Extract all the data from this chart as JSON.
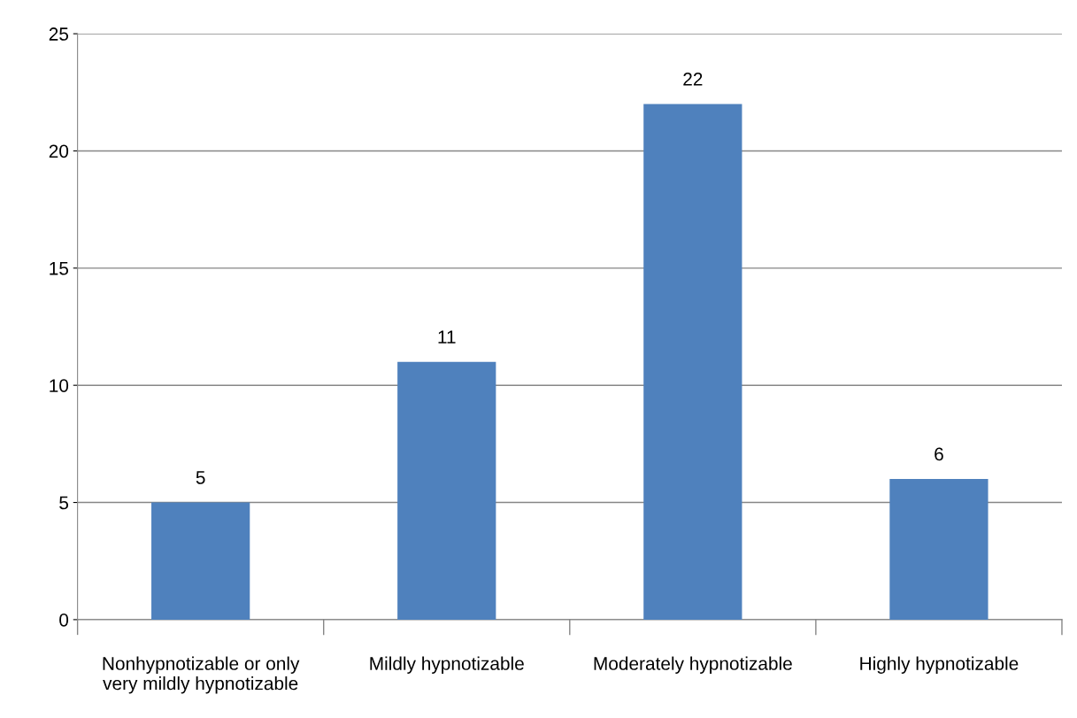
{
  "chart_data": {
    "type": "bar",
    "categories": [
      "Nonhypnotizable or only\nvery mildly hypnotizable",
      "Mildly hypnotizable",
      "Moderately hypnotizable",
      "Highly hypnotizable"
    ],
    "values": [
      5,
      11,
      22,
      6
    ],
    "color": "#4f81bd",
    "ylim": [
      0,
      25
    ],
    "yticks": [
      0,
      5,
      10,
      15,
      20,
      25
    ],
    "grid": "y",
    "data_labels": true
  }
}
